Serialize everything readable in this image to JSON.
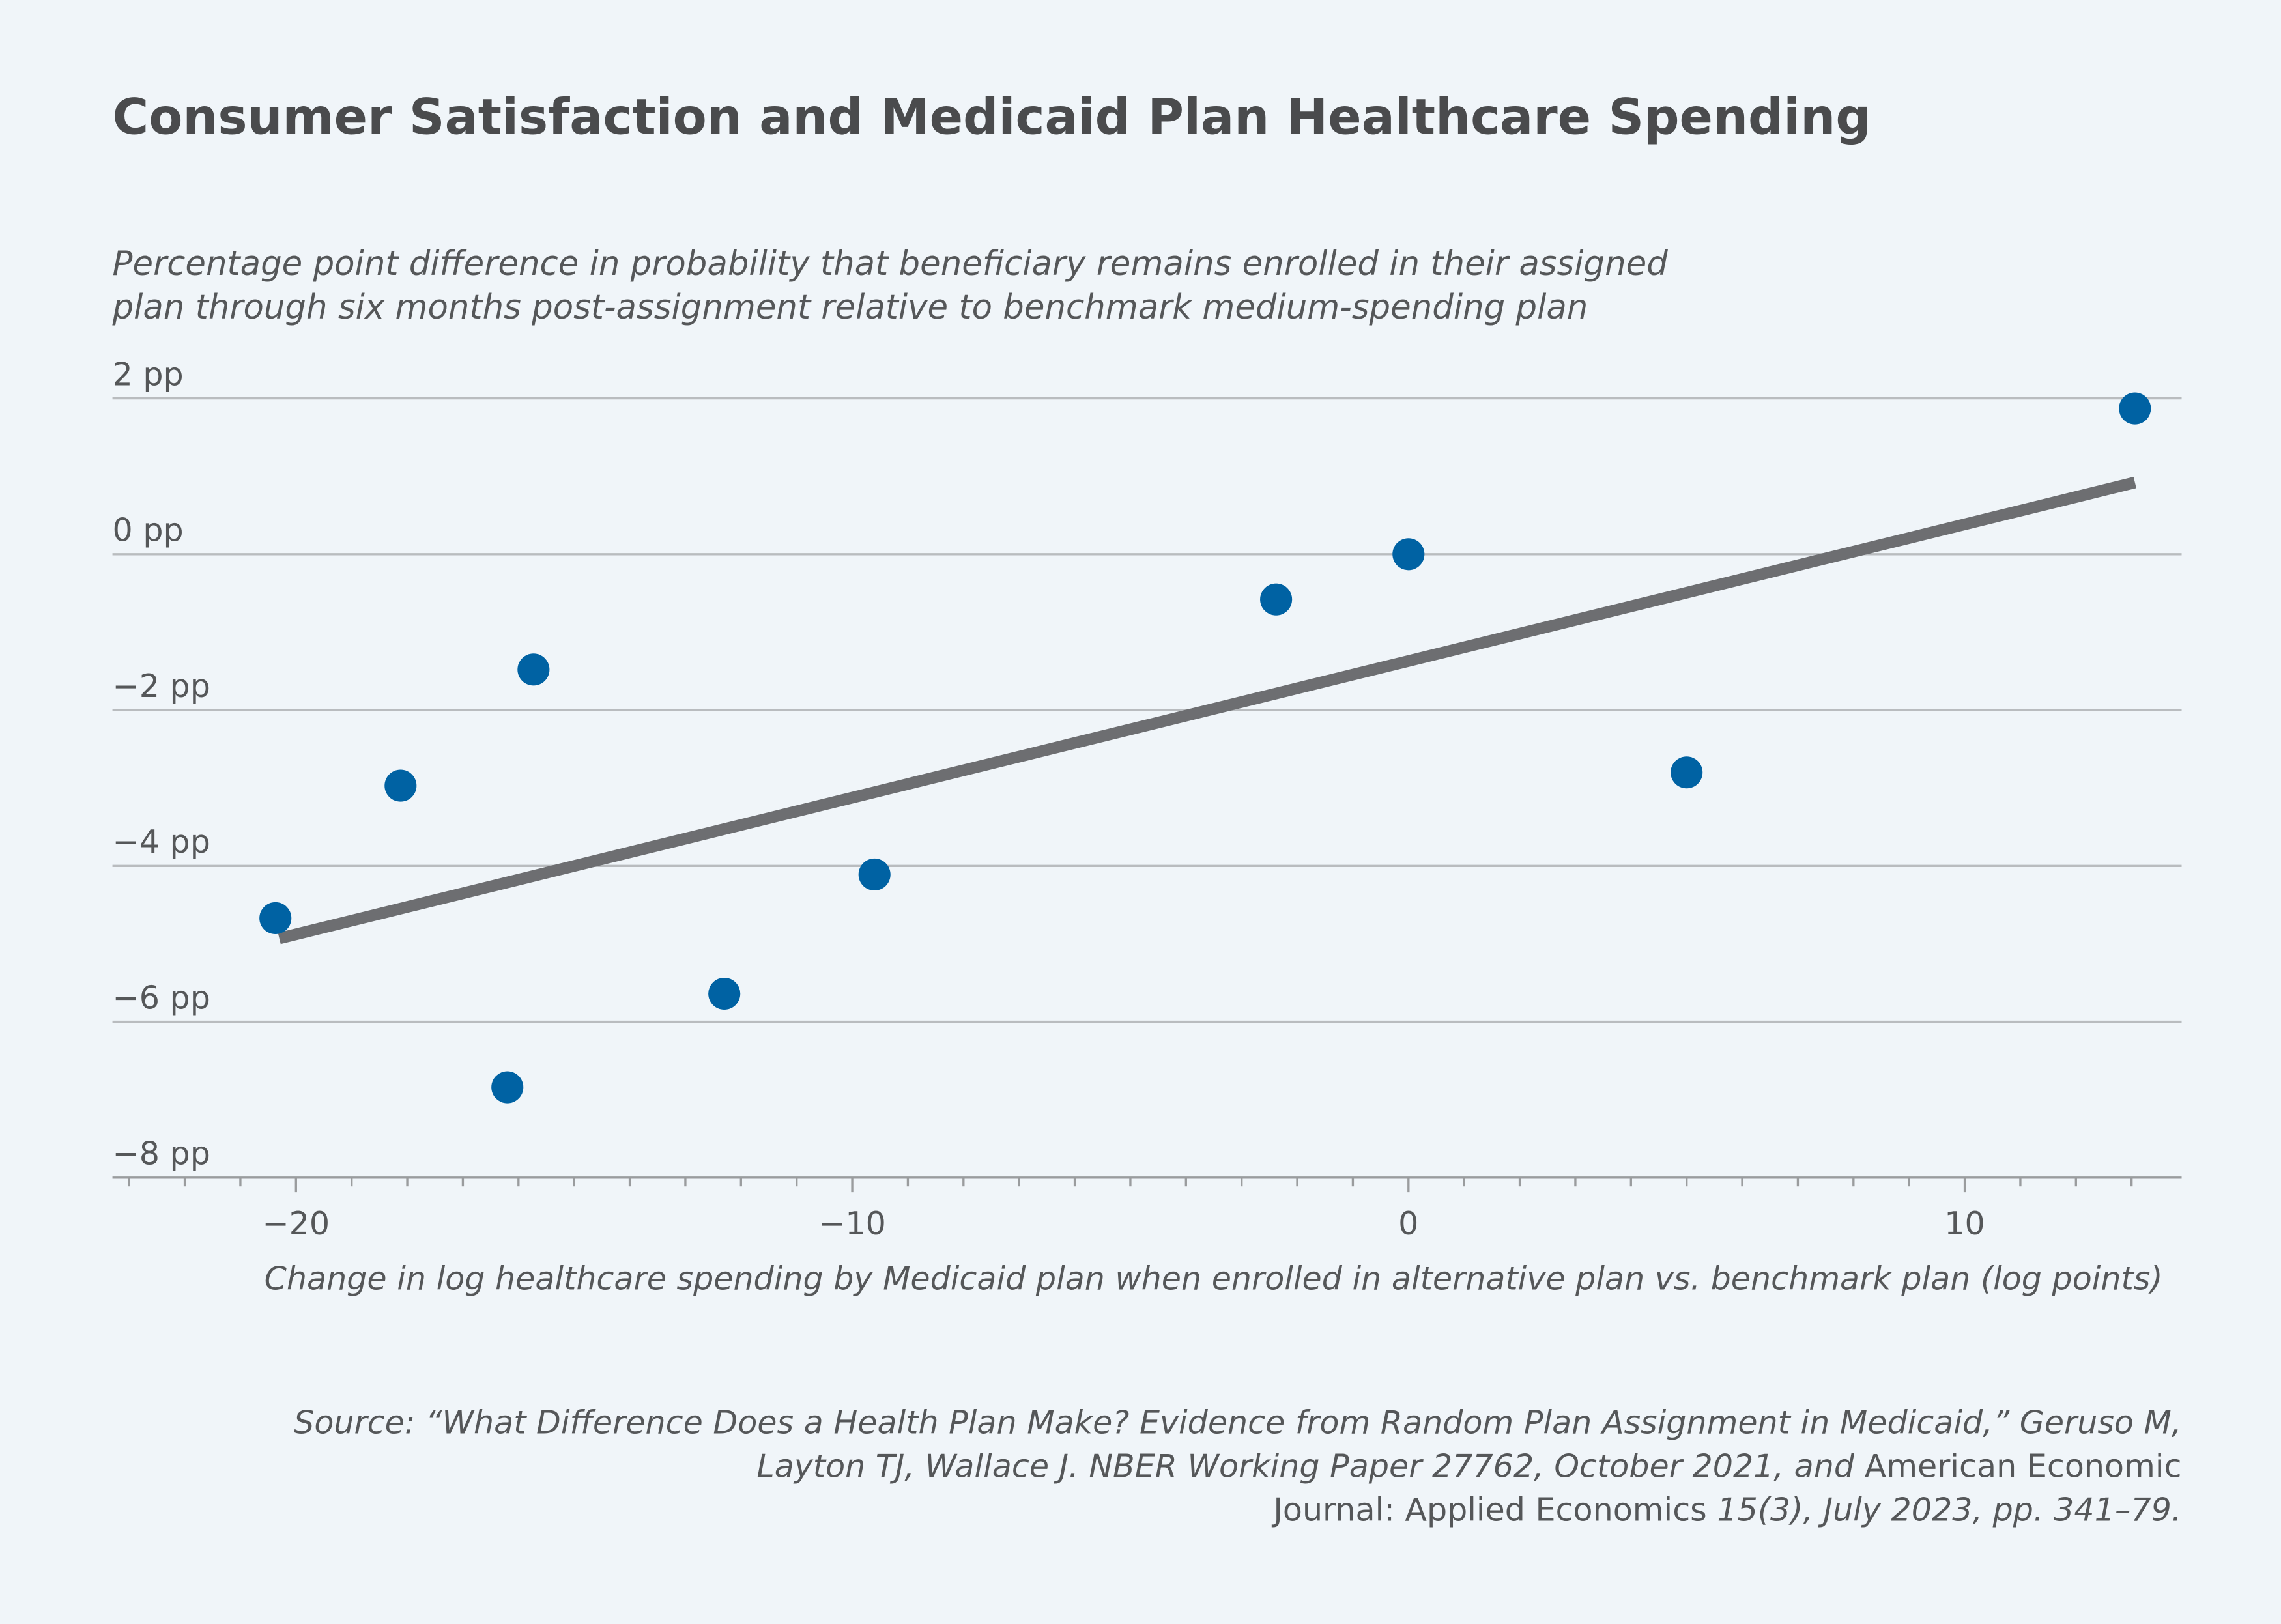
{
  "chart_data": {
    "type": "scatter",
    "title": "Consumer Satisfaction and Medicaid Plan Healthcare Spending",
    "subtitle": [
      "Percentage point difference in probability that beneficiary remains enrolled in their assigned",
      "plan through six months post-assignment relative to benchmark medium-spending plan"
    ],
    "x_label": "Change in log healthcare spending by Medicaid plan when enrolled in alternative plan vs. benchmark plan (log points)",
    "x": [
      -20.37,
      -18.12,
      -15.73,
      -16.2,
      -12.3,
      -9.6,
      -2.38,
      0,
      5.0,
      13.06
    ],
    "values": [
      -4.67,
      -2.97,
      -1.48,
      -6.84,
      -5.64,
      -4.11,
      -0.58,
      0,
      -2.8,
      1.87
    ],
    "color": "#0062a3",
    "trend": {
      "x": [
        -20.3,
        13.06
      ],
      "values": [
        -4.93,
        0.92
      ],
      "color": "#6d6e71"
    },
    "xlim": [
      -23.3,
      13.9
    ],
    "ylim": [
      -8,
      2
    ],
    "xticks": [
      {
        "value": -20,
        "label": "−20"
      },
      {
        "value": -10,
        "label": "−10"
      },
      0,
      10
    ],
    "xminorticks": [
      -23,
      -22,
      -21,
      -19,
      -18,
      -17,
      -16,
      -15,
      -14,
      -13,
      -12,
      -11,
      -9,
      -8,
      -7,
      -6,
      -5,
      -4,
      -3,
      -2,
      -1,
      1,
      2,
      3,
      4,
      5,
      6,
      7,
      8,
      9,
      11,
      12,
      13
    ],
    "yticks": [
      {
        "value": -8,
        "label": "−8 pp"
      },
      {
        "value": -6,
        "label": "−6 pp"
      },
      {
        "value": -4,
        "label": "−4 pp"
      },
      {
        "value": -2,
        "label": "−2 pp"
      },
      {
        "value": 0,
        "label": "0 pp"
      },
      {
        "value": 2,
        "label": "2 pp"
      }
    ],
    "grid": true,
    "source": [
      [
        {
          "text": "Source: “What Difference Does a Health Plan Make? Evidence from Random Plan Assignment in Medicaid,” Geruso M,",
          "italic": true
        }
      ],
      [
        {
          "text": "Layton TJ, Wallace J. NBER Working Paper 27762, October 2021, and",
          "italic": true
        },
        {
          "text": " American Economic",
          "italic": false
        }
      ],
      [
        {
          "text": "Journal: Applied Economics ",
          "italic": false
        },
        {
          "text": "15(3), July 2023, pp. 341–79.",
          "italic": true
        }
      ]
    ]
  }
}
